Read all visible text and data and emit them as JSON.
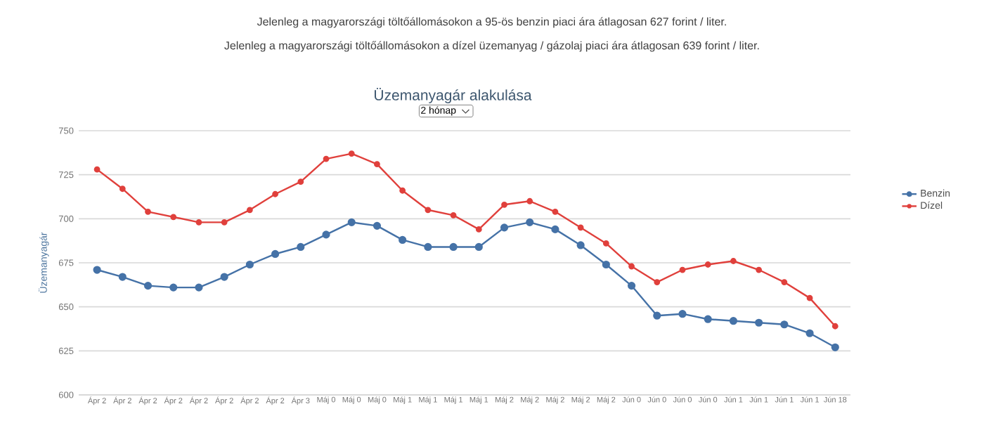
{
  "chart_data": {
    "type": "line",
    "title": "Üzemanyagár alakulása",
    "ylabel": "Üzemanyagár",
    "annotations": [
      "Jelenleg a magyarországi töltőállomásokon a 95-ös benzin piaci ára átlagosan 627 forint / liter.",
      "Jelenleg a magyarországi töltőállomásokon a dízel üzemanyag / gázolaj piaci ára átlagosan 639 forint / liter.",
      "2 hónap"
    ],
    "categories": [
      "Ápr 2",
      "Ápr 2",
      "Ápr 2",
      "Ápr 2",
      "Ápr 2",
      "Ápr 2",
      "Ápr 2",
      "Ápr 2",
      "Ápr 3",
      "Máj 0",
      "Máj 0",
      "Máj 0",
      "Máj 1",
      "Máj 1",
      "Máj 1",
      "Máj 1",
      "Máj 2",
      "Máj 2",
      "Máj 2",
      "Máj 2",
      "Máj 2",
      "Jún 0",
      "Jún 0",
      "Jún 0",
      "Jún 0",
      "Jún 1",
      "Jún 1",
      "Jún 1",
      "Jún 1",
      "Jún 18"
    ],
    "series": [
      {
        "name": "Benzin",
        "color": "#4572a7",
        "values": [
          671,
          667,
          662,
          661,
          661,
          667,
          674,
          680,
          684,
          691,
          698,
          696,
          688,
          684,
          684,
          684,
          695,
          698,
          694,
          685,
          674,
          662,
          645,
          646,
          643,
          642,
          641,
          640,
          635,
          627
        ]
      },
      {
        "name": "Dízel",
        "color": "#e0403c",
        "values": [
          728,
          717,
          704,
          701,
          698,
          698,
          705,
          714,
          721,
          734,
          737,
          731,
          716,
          705,
          702,
          694,
          708,
          710,
          704,
          695,
          686,
          673,
          664,
          671,
          674,
          676,
          671,
          664,
          655,
          639
        ]
      }
    ],
    "ylim": [
      600,
      750
    ],
    "yticks": [
      600,
      625,
      650,
      675,
      700,
      725,
      750
    ],
    "grid": "y",
    "legend": "right",
    "marker": "circle",
    "line_style": "solid"
  }
}
